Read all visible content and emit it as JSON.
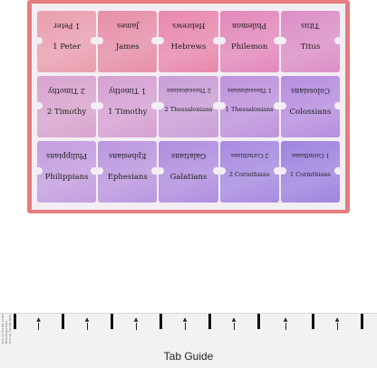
{
  "tabs": [
    {
      "name": "1 Peter",
      "color": "#ea9fb0",
      "small": false
    },
    {
      "name": "James",
      "color": "#e78fa8",
      "small": false
    },
    {
      "name": "Hebrews",
      "color": "#e988ae",
      "small": false
    },
    {
      "name": "Philemon",
      "color": "#e389bb",
      "small": false
    },
    {
      "name": "Titus",
      "color": "#dc8fc6",
      "small": false
    },
    {
      "name": "2 Timothy",
      "color": "#d9a4ce",
      "small": false
    },
    {
      "name": "1 Timothy",
      "color": "#d6a1d3",
      "small": false
    },
    {
      "name": "2 Thessalonians",
      "color": "#c99fd8",
      "small": true
    },
    {
      "name": "1 Thessalonians",
      "color": "#be93dd",
      "small": true
    },
    {
      "name": "Colossians",
      "color": "#b78ee0",
      "small": false
    },
    {
      "name": "Philippians",
      "color": "#c49ee0",
      "small": false
    },
    {
      "name": "Ephesians",
      "color": "#bb97df",
      "small": false
    },
    {
      "name": "Galatians",
      "color": "#b08ee0",
      "small": false
    },
    {
      "name": "2 Corinthians",
      "color": "#a88be2",
      "small": true
    },
    {
      "name": "1 Corinthians",
      "color": "#a084e0",
      "small": true
    }
  ],
  "guide": {
    "title": "Tab Guide",
    "note_line1": "Line Up the Top of the",
    "note_line2": "Bible Pages Here",
    "note_line3": "Line Up The Tab Here"
  },
  "colors": {
    "sheet_border": "#e57d7f",
    "sheet_bg": "#f3eef3",
    "guide_bg": "#f2f2f2"
  }
}
